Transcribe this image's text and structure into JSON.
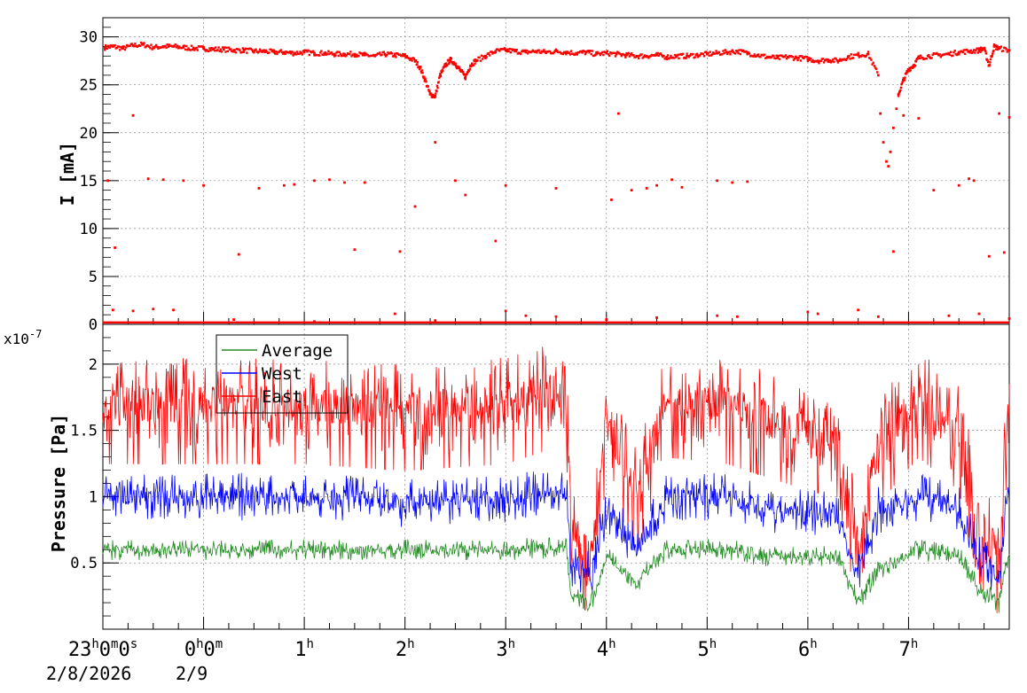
{
  "chart_data": [
    {
      "type": "scatter",
      "title": "",
      "xlabel": "",
      "ylabel": "I [mA]",
      "ylim": [
        0,
        32
      ],
      "y_ticks": [
        "0",
        "5",
        "10",
        "15",
        "20",
        "25",
        "30"
      ],
      "grid": true,
      "color": "#ff0000",
      "x_unit": "hours since 23:00 on 2/8/2026",
      "xlim": [
        0,
        9.0
      ],
      "series": [
        {
          "points": [
            [
              0.02,
              28.9
            ],
            [
              0.1,
              29.0
            ],
            [
              0.2,
              28.8
            ],
            [
              0.3,
              29.1
            ],
            [
              0.4,
              29.2
            ],
            [
              0.5,
              28.9
            ],
            [
              0.6,
              29.0
            ],
            [
              0.7,
              29.0
            ],
            [
              0.8,
              28.9
            ],
            [
              0.9,
              28.8
            ],
            [
              1.0,
              28.8
            ],
            [
              1.1,
              28.7
            ],
            [
              1.2,
              28.7
            ],
            [
              1.3,
              28.6
            ],
            [
              1.4,
              28.6
            ],
            [
              1.5,
              28.5
            ],
            [
              1.6,
              28.5
            ],
            [
              1.7,
              28.4
            ],
            [
              1.8,
              28.4
            ],
            [
              1.9,
              28.3
            ],
            [
              2.0,
              28.4
            ],
            [
              2.1,
              28.3
            ],
            [
              2.2,
              28.3
            ],
            [
              2.3,
              28.2
            ],
            [
              2.4,
              28.2
            ],
            [
              2.5,
              28.2
            ],
            [
              2.6,
              28.1
            ],
            [
              2.7,
              28.0
            ],
            [
              2.8,
              28.2
            ],
            [
              2.9,
              28.1
            ],
            [
              3.0,
              28.0
            ],
            [
              3.1,
              27.5
            ],
            [
              3.15,
              26.8
            ],
            [
              3.2,
              25.5
            ],
            [
              3.25,
              24.0
            ],
            [
              3.3,
              23.8
            ],
            [
              3.35,
              26.0
            ],
            [
              3.4,
              27.0
            ],
            [
              3.45,
              27.6
            ],
            [
              3.5,
              27.2
            ],
            [
              3.55,
              26.5
            ],
            [
              3.6,
              25.8
            ],
            [
              3.65,
              27.0
            ],
            [
              3.7,
              27.5
            ],
            [
              3.8,
              28.0
            ],
            [
              3.9,
              28.5
            ],
            [
              4.0,
              28.6
            ],
            [
              4.1,
              28.5
            ],
            [
              4.2,
              28.4
            ],
            [
              4.3,
              28.5
            ],
            [
              4.4,
              28.4
            ],
            [
              4.5,
              28.5
            ],
            [
              4.6,
              28.4
            ],
            [
              4.7,
              28.3
            ],
            [
              4.8,
              28.4
            ],
            [
              4.9,
              28.2
            ],
            [
              5.0,
              28.3
            ],
            [
              5.1,
              28.2
            ],
            [
              5.2,
              28.1
            ],
            [
              5.3,
              28.0
            ],
            [
              5.4,
              28.0
            ],
            [
              5.5,
              28.1
            ],
            [
              5.6,
              27.9
            ],
            [
              5.7,
              28.0
            ],
            [
              5.8,
              28.0
            ],
            [
              5.9,
              28.1
            ],
            [
              6.0,
              28.2
            ],
            [
              6.1,
              28.3
            ],
            [
              6.2,
              28.4
            ],
            [
              6.3,
              28.5
            ],
            [
              6.4,
              28.3
            ],
            [
              6.5,
              28.1
            ],
            [
              6.6,
              27.9
            ],
            [
              6.7,
              27.8
            ],
            [
              6.8,
              27.9
            ],
            [
              6.9,
              27.8
            ],
            [
              7.0,
              27.7
            ],
            [
              7.1,
              27.5
            ],
            [
              7.2,
              27.6
            ],
            [
              7.3,
              27.5
            ],
            [
              7.4,
              27.9
            ],
            [
              7.5,
              28.1
            ],
            [
              7.6,
              28.2
            ],
            [
              7.7,
              26.0
            ],
            [
              7.72,
              22.0
            ],
            [
              7.75,
              19.0
            ],
            [
              7.78,
              17.0
            ],
            [
              7.8,
              16.5
            ],
            [
              7.82,
              18.0
            ],
            [
              7.85,
              20.5
            ],
            [
              7.88,
              22.5
            ],
            [
              7.9,
              24.0
            ],
            [
              7.95,
              25.5
            ],
            [
              8.0,
              26.6
            ],
            [
              8.05,
              27.0
            ],
            [
              8.1,
              27.8
            ],
            [
              8.2,
              28.0
            ],
            [
              8.3,
              28.1
            ],
            [
              8.4,
              28.2
            ],
            [
              8.5,
              28.4
            ],
            [
              8.6,
              28.5
            ],
            [
              8.7,
              28.6
            ],
            [
              8.75,
              28.8
            ],
            [
              8.8,
              27.0
            ],
            [
              8.85,
              29.0
            ],
            [
              8.9,
              28.8
            ],
            [
              9.0,
              28.6
            ],
            [
              0.05,
              15.0
            ],
            [
              0.12,
              8.0
            ],
            [
              0.3,
              21.8
            ],
            [
              0.45,
              15.2
            ],
            [
              0.6,
              15.1
            ],
            [
              0.8,
              15.0
            ],
            [
              1.0,
              14.5
            ],
            [
              1.35,
              7.3
            ],
            [
              1.55,
              14.2
            ],
            [
              1.8,
              14.5
            ],
            [
              1.9,
              14.6
            ],
            [
              2.1,
              15.0
            ],
            [
              2.25,
              15.1
            ],
            [
              2.4,
              14.8
            ],
            [
              2.5,
              7.8
            ],
            [
              2.6,
              14.8
            ],
            [
              2.95,
              7.6
            ],
            [
              3.1,
              12.3
            ],
            [
              3.3,
              19.0
            ],
            [
              3.5,
              15.0
            ],
            [
              3.6,
              13.5
            ],
            [
              3.9,
              8.7
            ],
            [
              4.0,
              14.5
            ],
            [
              4.5,
              14.2
            ],
            [
              5.05,
              13.0
            ],
            [
              5.12,
              22.0
            ],
            [
              5.25,
              14.0
            ],
            [
              5.4,
              14.2
            ],
            [
              5.5,
              14.5
            ],
            [
              5.65,
              15.1
            ],
            [
              5.75,
              14.3
            ],
            [
              6.1,
              15.0
            ],
            [
              6.25,
              14.8
            ],
            [
              6.4,
              14.9
            ],
            [
              7.85,
              7.6
            ],
            [
              7.95,
              21.8
            ],
            [
              8.1,
              21.5
            ],
            [
              8.25,
              14.0
            ],
            [
              8.5,
              14.5
            ],
            [
              8.6,
              15.2
            ],
            [
              8.65,
              15.0
            ],
            [
              8.8,
              7.1
            ],
            [
              8.95,
              7.5
            ],
            [
              8.9,
              22.0
            ],
            [
              9.0,
              21.6
            ],
            [
              0.1,
              1.5
            ],
            [
              0.3,
              1.4
            ],
            [
              0.5,
              1.6
            ],
            [
              0.7,
              1.5
            ],
            [
              1.3,
              0.5
            ],
            [
              2.1,
              0.3
            ],
            [
              2.9,
              1.1
            ],
            [
              3.3,
              0.4
            ],
            [
              4.0,
              1.4
            ],
            [
              4.2,
              0.9
            ],
            [
              4.5,
              0.8
            ],
            [
              5.0,
              0.5
            ],
            [
              5.5,
              0.7
            ],
            [
              6.1,
              0.9
            ],
            [
              6.3,
              0.8
            ],
            [
              7.0,
              1.3
            ],
            [
              7.1,
              1.1
            ],
            [
              7.5,
              1.5
            ],
            [
              7.7,
              0.8
            ],
            [
              8.4,
              0.9
            ],
            [
              8.7,
              1.1
            ],
            [
              9.0,
              0.6
            ]
          ],
          "baseline_segments": [
            [
              0.0,
              0.3
            ],
            [
              0.3,
              9.0
            ]
          ]
        }
      ]
    },
    {
      "type": "line",
      "title": "",
      "xlabel": "",
      "ylabel": "Pressure [Pa]",
      "exponent_label": "x10-7",
      "exponent_base": "x10",
      "exponent_power": "-7",
      "ylim": [
        0.0,
        2.3
      ],
      "y_ticks": [
        "0.5",
        "1",
        "1.5",
        "2"
      ],
      "grid": true,
      "legend": {
        "placement": "top-left",
        "entries": [
          "Average",
          "West",
          "East"
        ]
      },
      "x_unit": "hours since 23:00 on 2/8/2026",
      "xlim": [
        0,
        9.0
      ],
      "series": [
        {
          "name": "Average",
          "color": "#228b22",
          "levels": [
            [
              0,
              0.6
            ],
            [
              1,
              0.6
            ],
            [
              2,
              0.6
            ],
            [
              3,
              0.6
            ],
            [
              4,
              0.6
            ],
            [
              4.6,
              0.62
            ],
            [
              4.65,
              0.25
            ],
            [
              4.85,
              0.2
            ],
            [
              5.0,
              0.55
            ],
            [
              5.3,
              0.35
            ],
            [
              5.6,
              0.6
            ],
            [
              6.2,
              0.6
            ],
            [
              6.6,
              0.55
            ],
            [
              7.0,
              0.55
            ],
            [
              7.3,
              0.55
            ],
            [
              7.5,
              0.2
            ],
            [
              7.7,
              0.45
            ],
            [
              8.1,
              0.6
            ],
            [
              8.5,
              0.55
            ],
            [
              8.7,
              0.3
            ],
            [
              8.9,
              0.2
            ],
            [
              9.0,
              0.6
            ]
          ],
          "noise": 0.08
        },
        {
          "name": "West",
          "color": "#0000ff",
          "levels": [
            [
              0,
              1.0
            ],
            [
              1,
              1.0
            ],
            [
              2,
              1.0
            ],
            [
              3,
              0.95
            ],
            [
              4,
              0.98
            ],
            [
              4.6,
              1.05
            ],
            [
              4.65,
              0.5
            ],
            [
              4.85,
              0.4
            ],
            [
              5.0,
              0.9
            ],
            [
              5.3,
              0.6
            ],
            [
              5.6,
              1.0
            ],
            [
              6.2,
              1.0
            ],
            [
              6.6,
              0.9
            ],
            [
              7.0,
              0.9
            ],
            [
              7.3,
              0.85
            ],
            [
              7.5,
              0.4
            ],
            [
              7.7,
              0.9
            ],
            [
              8.1,
              1.0
            ],
            [
              8.5,
              0.9
            ],
            [
              8.7,
              0.55
            ],
            [
              8.9,
              0.4
            ],
            [
              9.0,
              1.1
            ]
          ],
          "noise": 0.18
        },
        {
          "name": "East",
          "color": "#ff0000",
          "levels": [
            [
              0,
              1.7
            ],
            [
              1,
              1.7
            ],
            [
              2,
              1.7
            ],
            [
              3,
              1.65
            ],
            [
              4,
              1.7
            ],
            [
              4.6,
              1.85
            ],
            [
              4.65,
              0.7
            ],
            [
              4.85,
              0.55
            ],
            [
              5.0,
              1.6
            ],
            [
              5.3,
              1.0
            ],
            [
              5.6,
              1.75
            ],
            [
              6.2,
              1.7
            ],
            [
              6.6,
              1.6
            ],
            [
              7.0,
              1.5
            ],
            [
              7.3,
              1.45
            ],
            [
              7.5,
              0.55
            ],
            [
              7.7,
              1.4
            ],
            [
              8.1,
              1.75
            ],
            [
              8.5,
              1.5
            ],
            [
              8.7,
              0.8
            ],
            [
              8.9,
              0.55
            ],
            [
              9.0,
              1.8
            ]
          ],
          "noise": 0.35
        }
      ]
    }
  ],
  "x_axis": {
    "ticks": [
      {
        "hour": 1,
        "label": "23",
        "sup1": "h",
        "mid1": "0",
        "sup2": "m",
        "mid2": "0",
        "sup3": "s"
      },
      {
        "hour": 2,
        "label": "0",
        "sup1": "h",
        "mid1": "0",
        "sup2": "m"
      },
      {
        "hour": 3,
        "label": "1",
        "sup1": "h"
      },
      {
        "hour": 4,
        "label": "2",
        "sup1": "h"
      },
      {
        "hour": 5,
        "label": "3",
        "sup1": "h"
      },
      {
        "hour": 6,
        "label": "4",
        "sup1": "h"
      },
      {
        "hour": 7,
        "label": "5",
        "sup1": "h"
      },
      {
        "hour": 8,
        "label": "6",
        "sup1": "h"
      },
      {
        "hour": 9,
        "label": "7",
        "sup1": "h"
      }
    ],
    "dates": [
      "2/8/2026",
      "2/9"
    ]
  }
}
